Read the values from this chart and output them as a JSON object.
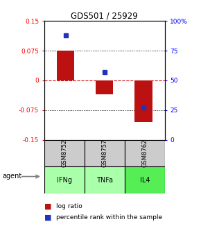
{
  "title": "GDS501 / 25929",
  "samples": [
    "GSM8752",
    "GSM8757",
    "GSM8762"
  ],
  "agents": [
    "IFNg",
    "TNFa",
    "IL4"
  ],
  "log_ratios": [
    0.075,
    -0.035,
    -0.105
  ],
  "percentile_ranks": [
    0.88,
    0.57,
    0.27
  ],
  "ylim_left": [
    -0.15,
    0.15
  ],
  "ylim_right": [
    0.0,
    1.0
  ],
  "yticks_left": [
    -0.15,
    -0.075,
    0.0,
    0.075,
    0.15
  ],
  "ytick_labels_left": [
    "-0.15",
    "-0.075",
    "0",
    "0.075",
    "0.15"
  ],
  "yticks_right": [
    0.0,
    0.25,
    0.5,
    0.75,
    1.0
  ],
  "ytick_labels_right": [
    "0",
    "25",
    "50",
    "75",
    "100%"
  ],
  "bar_color": "#bb1111",
  "dot_color": "#2233bb",
  "agent_colors": [
    "#aaffaa",
    "#aaffaa",
    "#55ee55"
  ],
  "sample_bg_color": "#cccccc",
  "zero_line_color": "#cc1111",
  "bg_color": "#ffffff"
}
